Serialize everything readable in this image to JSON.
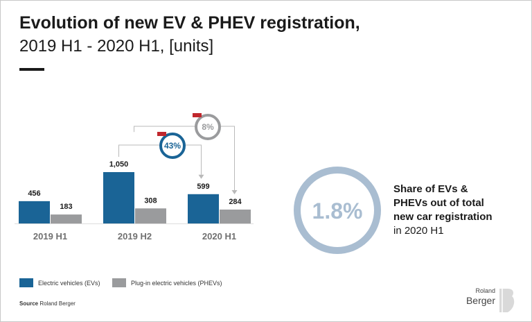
{
  "title": {
    "line1": "Evolution of new EV & PHEV registration,",
    "line2": "2019 H1 - 2020 H1, [units]"
  },
  "chart_data": {
    "type": "bar",
    "categories": [
      "2019 H1",
      "2019 H2",
      "2020 H1"
    ],
    "series": [
      {
        "name": "Electric vehicles (EVs)",
        "values": [
          456,
          1050,
          599
        ],
        "labels": [
          "456",
          "1,050",
          "599"
        ],
        "color": "#1a6496"
      },
      {
        "name": "Plug-in electric vehicles (PHEVs)",
        "values": [
          183,
          308,
          284
        ],
        "labels": [
          "183",
          "308",
          "284"
        ],
        "color": "#9a9b9d"
      }
    ],
    "annotations": [
      {
        "label": "43%",
        "from": "2019 H2",
        "to": "2020 H1",
        "series": "Electric vehicles (EVs)",
        "color": "#1a6496",
        "direction": "decrease"
      },
      {
        "label": "8%",
        "from": "2019 H2",
        "to": "2020 H1",
        "series": "Plug-in electric vehicles (PHEVs)",
        "color": "#9a9b9d",
        "direction": "decrease"
      }
    ],
    "xlabel": "",
    "ylabel": ""
  },
  "share": {
    "value": "1.8%",
    "ring_color": "#a9bdd1",
    "text_bold_1": "Share of EVs &",
    "text_bold_2": "PHEVs out of total",
    "text_bold_3": "new car registration",
    "text_normal": "in 2020 H1"
  },
  "legend": {
    "ev": "Electric vehicles (EVs)",
    "phev": "Plug-in electric vehicles (PHEVs)"
  },
  "source": {
    "label": "Source",
    "value": "Roland Berger"
  },
  "logo": {
    "small": "Roland",
    "big": "Berger"
  },
  "colors": {
    "ev": "#1a6496",
    "phev": "#9a9b9d",
    "marker": "#c0272d"
  }
}
